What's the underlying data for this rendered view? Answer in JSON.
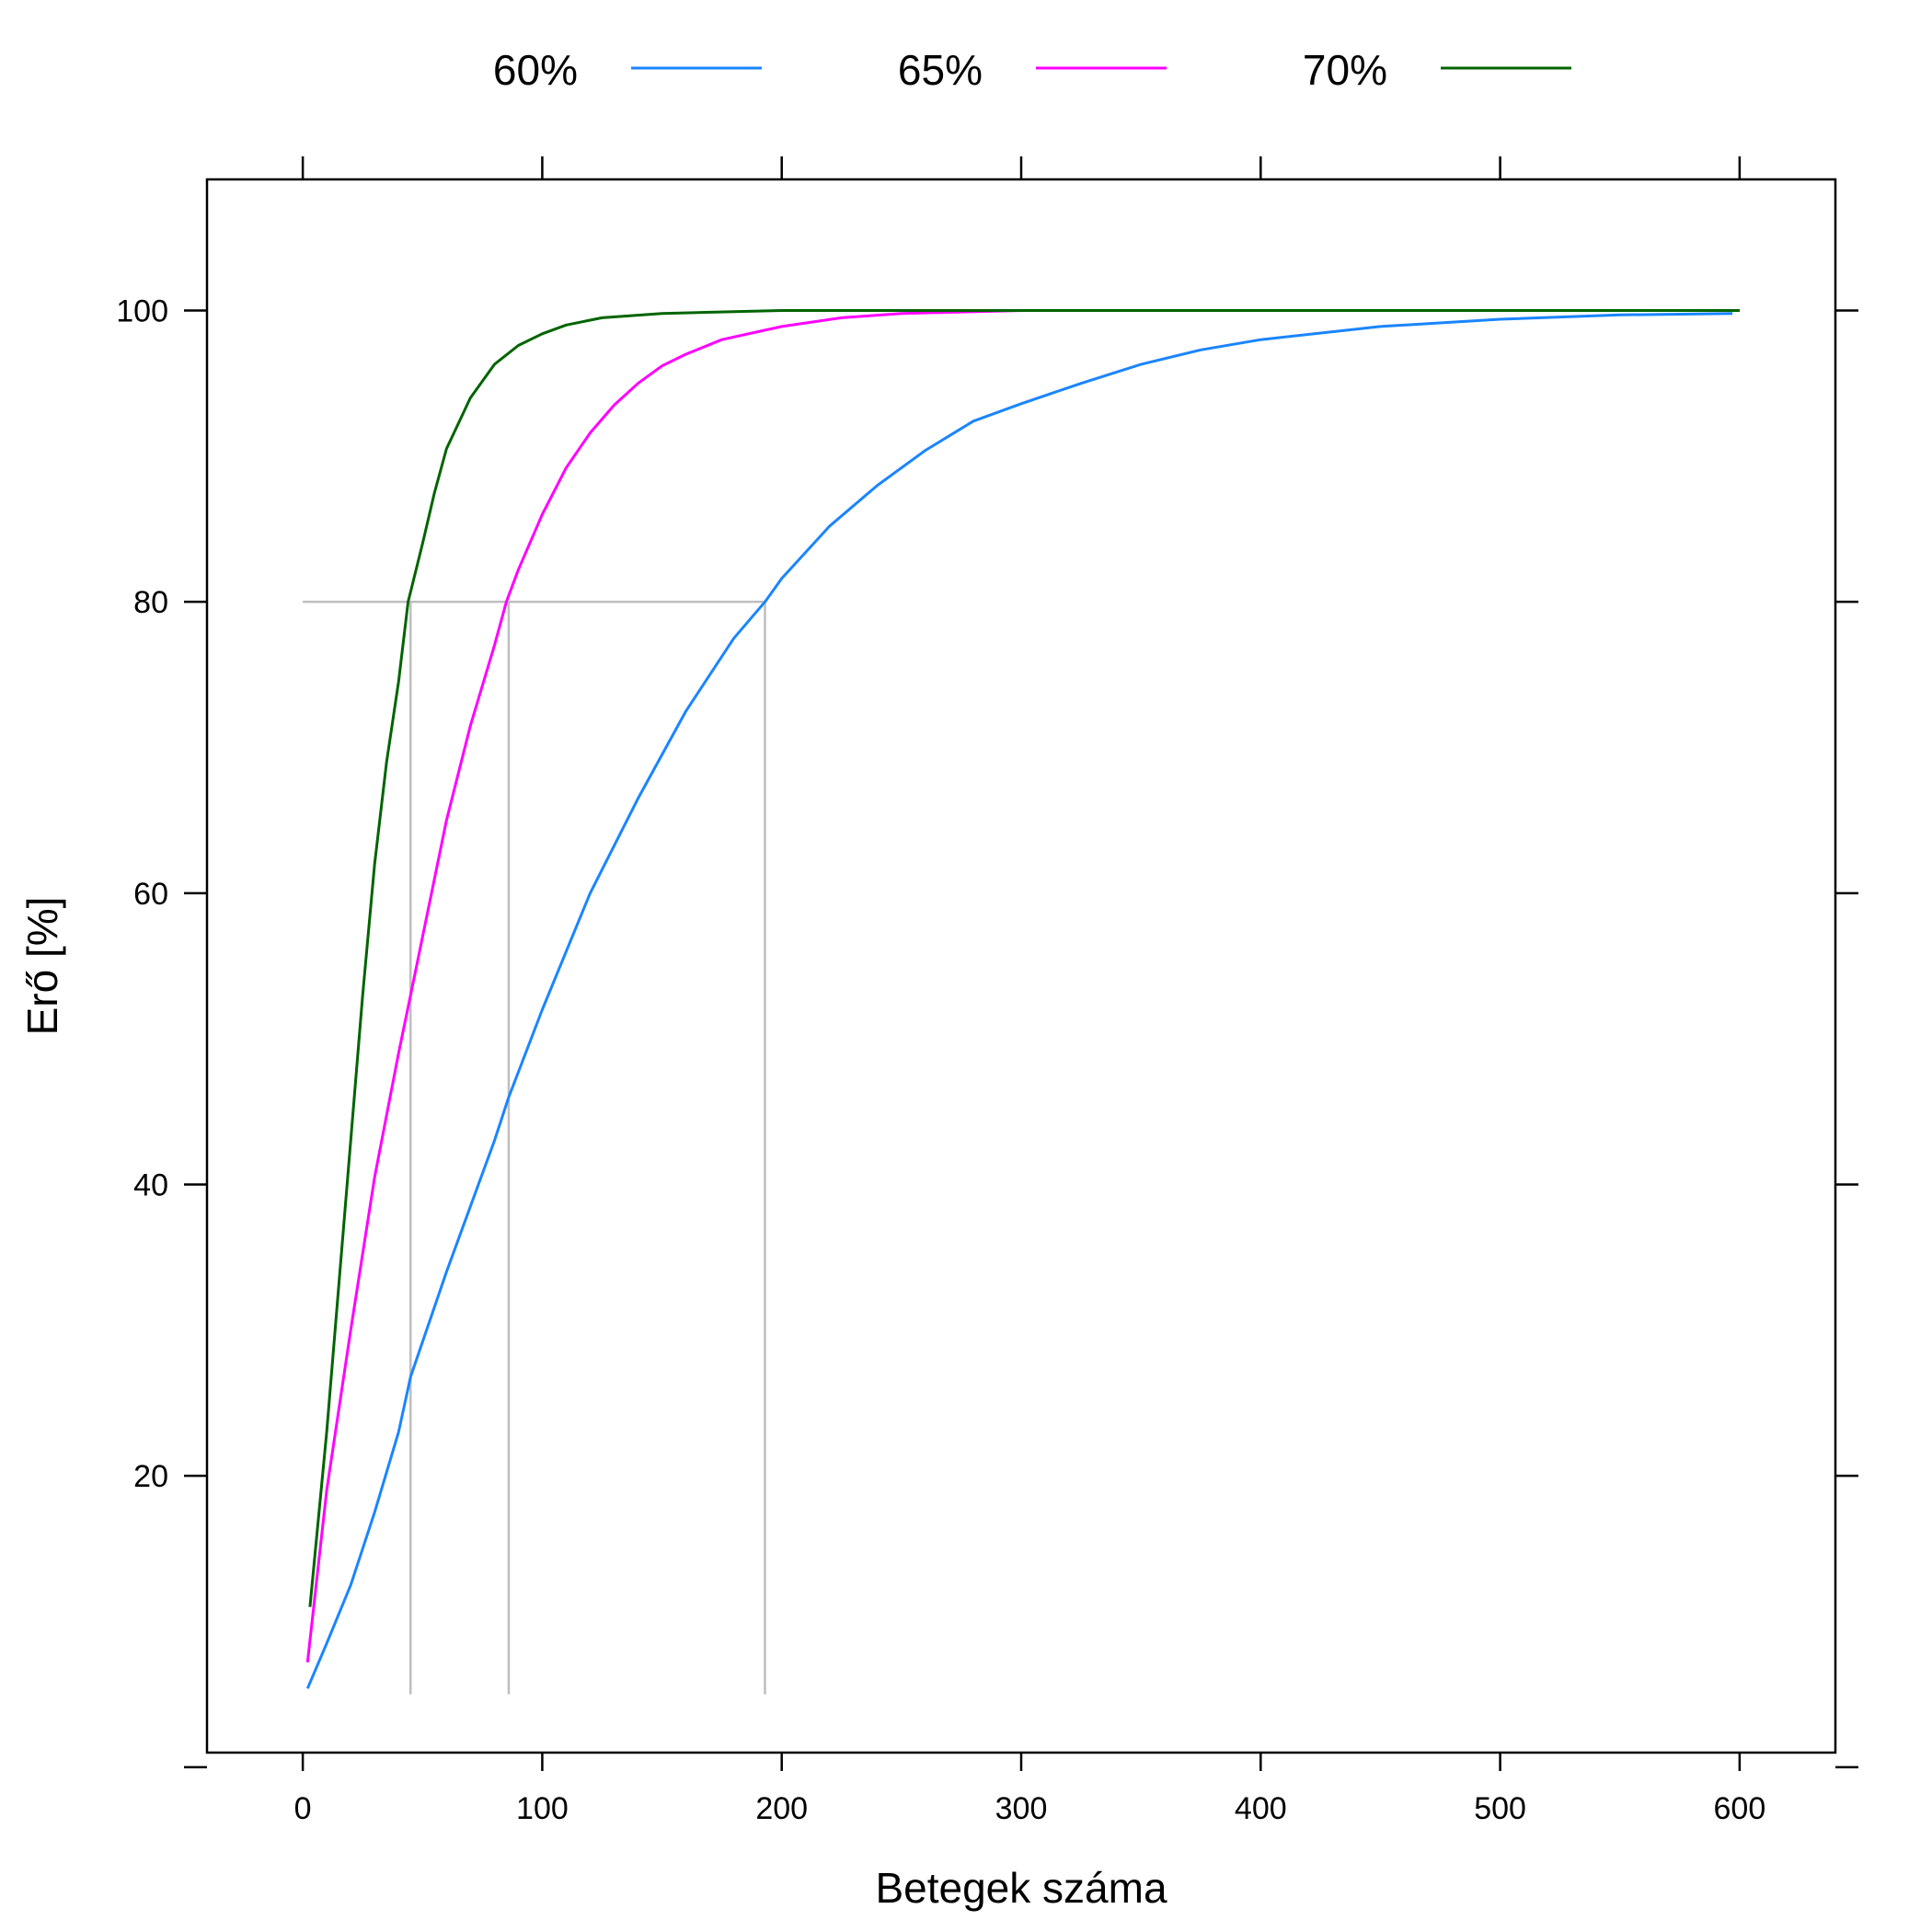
{
  "chart_data": {
    "type": "line",
    "xlabel": "Betegek száma",
    "ylabel": "Erő [%]",
    "xlim": [
      -40,
      640
    ],
    "ylim": [
      1,
      109
    ],
    "x_ticks": [
      0,
      100,
      200,
      300,
      400,
      500,
      600
    ],
    "y_ticks": [
      20,
      40,
      60,
      80,
      100
    ],
    "y_tick_marks": [
      0,
      20,
      40,
      60,
      80,
      100
    ],
    "grid": false,
    "legend_position": "top",
    "series": [
      {
        "name": "60%",
        "color": "#1a85ff",
        "points": [
          [
            2,
            5.4
          ],
          [
            10,
            8.5
          ],
          [
            20,
            12.5
          ],
          [
            30,
            17.5
          ],
          [
            40,
            23
          ],
          [
            45,
            26.8
          ],
          [
            50,
            29.2
          ],
          [
            60,
            34
          ],
          [
            70,
            38.5
          ],
          [
            80,
            43
          ],
          [
            86,
            46
          ],
          [
            100,
            52
          ],
          [
            120,
            60
          ],
          [
            140,
            66.5
          ],
          [
            160,
            72.5
          ],
          [
            180,
            77.5
          ],
          [
            193,
            80
          ],
          [
            200,
            81.6
          ],
          [
            220,
            85.2
          ],
          [
            240,
            88
          ],
          [
            260,
            90.4
          ],
          [
            280,
            92.4
          ],
          [
            300,
            93.6
          ],
          [
            325,
            95
          ],
          [
            350,
            96.3
          ],
          [
            375,
            97.3
          ],
          [
            400,
            98
          ],
          [
            450,
            98.9
          ],
          [
            500,
            99.4
          ],
          [
            550,
            99.7
          ],
          [
            597,
            99.8
          ]
        ]
      },
      {
        "name": "65%",
        "color": "#ff00ff",
        "points": [
          [
            2,
            7.2
          ],
          [
            10,
            19
          ],
          [
            20,
            30
          ],
          [
            30,
            40.5
          ],
          [
            40,
            49
          ],
          [
            45,
            53
          ],
          [
            50,
            57
          ],
          [
            60,
            65
          ],
          [
            70,
            71.5
          ],
          [
            80,
            77
          ],
          [
            85,
            80
          ],
          [
            90,
            82.2
          ],
          [
            100,
            86
          ],
          [
            110,
            89.2
          ],
          [
            120,
            91.6
          ],
          [
            130,
            93.5
          ],
          [
            140,
            95
          ],
          [
            150,
            96.2
          ],
          [
            160,
            97
          ],
          [
            175,
            98
          ],
          [
            200,
            98.9
          ],
          [
            225,
            99.5
          ],
          [
            250,
            99.8
          ],
          [
            300,
            100
          ],
          [
            400,
            100
          ],
          [
            500,
            100
          ],
          [
            600,
            100
          ]
        ]
      },
      {
        "name": "70%",
        "color": "#006400",
        "points": [
          [
            3,
            11
          ],
          [
            10,
            23
          ],
          [
            20,
            43
          ],
          [
            25,
            53
          ],
          [
            30,
            62
          ],
          [
            35,
            69
          ],
          [
            40,
            74.5
          ],
          [
            44,
            80
          ],
          [
            50,
            84
          ],
          [
            55,
            87.5
          ],
          [
            60,
            90.5
          ],
          [
            70,
            94
          ],
          [
            80,
            96.3
          ],
          [
            90,
            97.6
          ],
          [
            100,
            98.4
          ],
          [
            110,
            99
          ],
          [
            125,
            99.5
          ],
          [
            150,
            99.8
          ],
          [
            200,
            100
          ],
          [
            300,
            100
          ],
          [
            400,
            100
          ],
          [
            500,
            100
          ],
          [
            600,
            100
          ]
        ]
      }
    ],
    "reference_lines": {
      "y": 80,
      "x_start": 0,
      "x_values": [
        45,
        86,
        193
      ],
      "y_bottom": 5,
      "color": "#bebebe"
    }
  }
}
